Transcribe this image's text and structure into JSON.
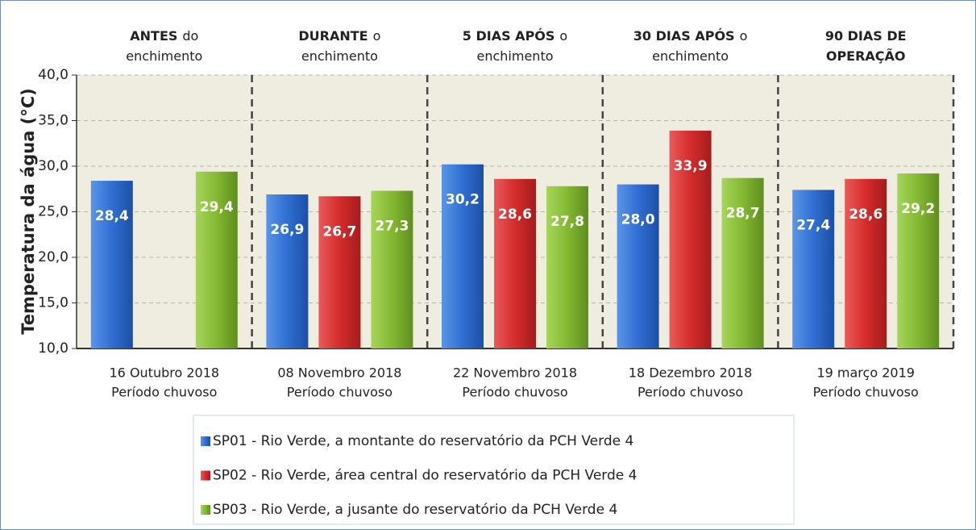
{
  "chart_data": {
    "type": "bar",
    "y_label": "Temperatura da água  (°C)",
    "categories": [
      "16 Outubro 2018",
      "08 Novembro 2018",
      "22 Novembro 2018",
      "18 Dezembro 2018",
      "19 março 2019"
    ],
    "category_notes": [
      "Período chuvoso",
      "Período chuvoso",
      "Período chuvoso",
      "Período chuvoso",
      "Período chuvoso"
    ],
    "annotations": [
      [
        [
          {
            "text": "ANTES",
            "bold": true
          },
          {
            "text": "do",
            "bold": false
          }
        ],
        [
          {
            "text": "enchimento",
            "bold": false
          }
        ]
      ],
      [
        [
          {
            "text": "DURANTE",
            "bold": true
          },
          {
            "text": "o",
            "bold": false
          }
        ],
        [
          {
            "text": "enchimento",
            "bold": false
          }
        ]
      ],
      [
        [
          {
            "text": "5 DIAS APÓS",
            "bold": true
          },
          {
            "text": "o",
            "bold": false
          }
        ],
        [
          {
            "text": "enchimento",
            "bold": false
          }
        ]
      ],
      [
        [
          {
            "text": "30 DIAS APÓS",
            "bold": true
          },
          {
            "text": "o",
            "bold": false
          }
        ],
        [
          {
            "text": "enchimento",
            "bold": false
          }
        ]
      ],
      [
        [
          {
            "text": "90 DIAS DE",
            "bold": true
          }
        ],
        [
          {
            "text": "OPERAÇÃO",
            "bold": true
          }
        ]
      ]
    ],
    "series": [
      {
        "name": "SP01 - Rio Verde, a montante do reservatório da PCH Verde 4",
        "color": "#2f6fd3",
        "values": [
          28.4,
          26.9,
          30.2,
          28.0,
          27.4
        ],
        "value_labels": [
          "28,4",
          "26,9",
          "30,2",
          "28,0",
          "27,4"
        ]
      },
      {
        "name": "SP02 - Rio Verde, área central do reservatório da PCH Verde 4",
        "color": "#d42c2c",
        "values": [
          null,
          26.7,
          28.6,
          33.9,
          28.6
        ],
        "value_labels": [
          null,
          "26,7",
          "28,6",
          "33,9",
          "28,6"
        ]
      },
      {
        "name": "SP03 - Rio Verde, a jusante do reservatório da PCH Verde 4",
        "color": "#84b832",
        "values": [
          29.4,
          27.3,
          27.8,
          28.7,
          29.2
        ],
        "value_labels": [
          "29,4",
          "27,3",
          "27,8",
          "28,7",
          "29,2"
        ]
      }
    ],
    "ylim": [
      10,
      40
    ],
    "yticks": [
      {
        "value": 10,
        "label": "10,0"
      },
      {
        "value": 15,
        "label": "15,0"
      },
      {
        "value": 20,
        "label": "20,0"
      },
      {
        "value": 25,
        "label": "25,0"
      },
      {
        "value": 30,
        "label": "30,0"
      },
      {
        "value": 35,
        "label": "35,0"
      },
      {
        "value": 40,
        "label": "40,0"
      }
    ],
    "grid": true
  }
}
